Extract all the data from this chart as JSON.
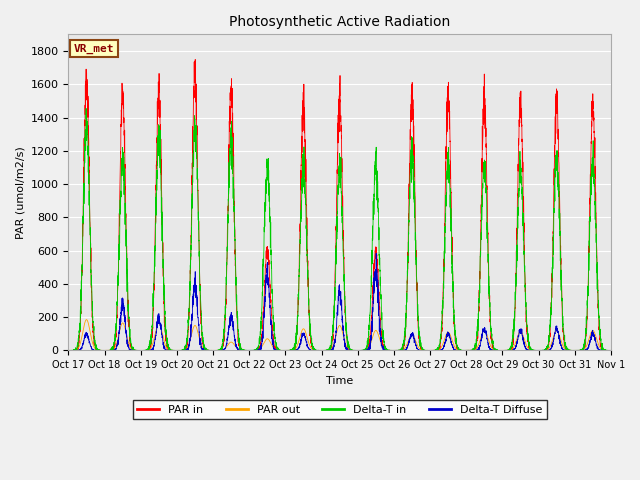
{
  "title": "Photosynthetic Active Radiation",
  "ylabel": "PAR (umol/m2/s)",
  "xlabel": "Time",
  "ylim": [
    0,
    1900
  ],
  "background_color": "#f0f0f0",
  "plot_bg_color": "#e8e8e8",
  "label_box_text": "VR_met",
  "legend_labels": [
    "PAR in",
    "PAR out",
    "Delta-T in",
    "Delta-T Diffuse"
  ],
  "legend_colors": [
    "#ff0000",
    "#ffa500",
    "#00cc00",
    "#0000cc"
  ],
  "date_labels": [
    "Oct 17",
    "Oct 18",
    "Oct 19",
    "Oct 20",
    "Oct 21",
    "Oct 22",
    "Oct 23",
    "Oct 24",
    "Oct 25",
    "Oct 26",
    "Oct 27",
    "Oct 28",
    "Oct 29",
    "Oct 30",
    "Oct 31",
    "Nov 1"
  ],
  "n_days": 15,
  "pts_per_day": 288,
  "day_peaks_PAR_in": [
    1620,
    1540,
    1540,
    1660,
    1550,
    600,
    1480,
    1520,
    600,
    1540,
    1530,
    1500,
    1500,
    1500,
    1480
  ],
  "day_peaks_PAR_out": [
    185,
    165,
    165,
    150,
    50,
    70,
    130,
    150,
    120,
    95,
    110,
    120,
    115,
    120,
    120
  ],
  "day_peaks_DeltaT": [
    1340,
    1140,
    1260,
    1340,
    1260,
    1110,
    1090,
    1080,
    1100,
    1200,
    1120,
    1130,
    1080,
    1140,
    1150
  ],
  "day_peaks_Diffuse": [
    100,
    280,
    195,
    415,
    200,
    465,
    100,
    350,
    490,
    100,
    100,
    130,
    120,
    130,
    100
  ],
  "sigma_in": 0.08,
  "sigma_out": 0.1,
  "sigma_dt": 0.09,
  "sigma_df": 0.07
}
